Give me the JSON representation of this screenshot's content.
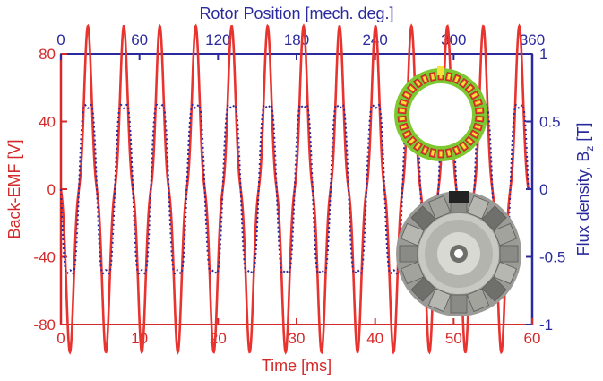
{
  "chart_data": {
    "type": "line",
    "title": "",
    "xlabel": "Time [ms]",
    "x2label": "Rotor Position [mech. deg.]",
    "ylabel": "Back-EMF [V]",
    "y2label_main": "Flux density, B",
    "y2label_sub": "z",
    "y2label_unit": " [T]",
    "xlim": [
      0,
      60
    ],
    "x2lim": [
      0,
      360
    ],
    "ylim": [
      -80,
      80
    ],
    "y2lim": [
      -1,
      1
    ],
    "x_ticks": [
      "0",
      "10",
      "20",
      "30",
      "40",
      "50",
      "60"
    ],
    "x2_ticks": [
      "0",
      "60",
      "120",
      "180",
      "240",
      "300",
      "360"
    ],
    "y_ticks": [
      "80",
      "40",
      "0",
      "-40",
      "-80"
    ],
    "y2_ticks": [
      "1",
      "0.5",
      "0",
      "-0.5",
      "-1"
    ],
    "grid": false,
    "series": [
      {
        "axis": "left",
        "color": "#e8332f",
        "style": "solid",
        "cycles": 13,
        "start_ms": 0,
        "end_ms": 59.5,
        "amplitude_peak": 75,
        "amplitude_trough": -75,
        "waveform": "sine with 3rd harmonic (double-humped peaks)"
      },
      {
        "axis": "right",
        "color": "#2a2a9e",
        "style": "dotted",
        "cycles": 13,
        "start_ms": 0,
        "end_ms": 59.5,
        "amplitude_peak": 0.72,
        "amplitude_trough": -0.72,
        "waveform": "flat-topped sinusoid"
      }
    ]
  },
  "insets": {
    "top_icon": "stator-rotor-fem-ring-icon",
    "bottom_icon": "rotor-disc-photo-icon"
  },
  "colors": {
    "left_axis": "#d42a2a",
    "right_axis": "#2a2a9e",
    "emf_line": "#e8332f",
    "flux_line": "#2a2a9e"
  }
}
